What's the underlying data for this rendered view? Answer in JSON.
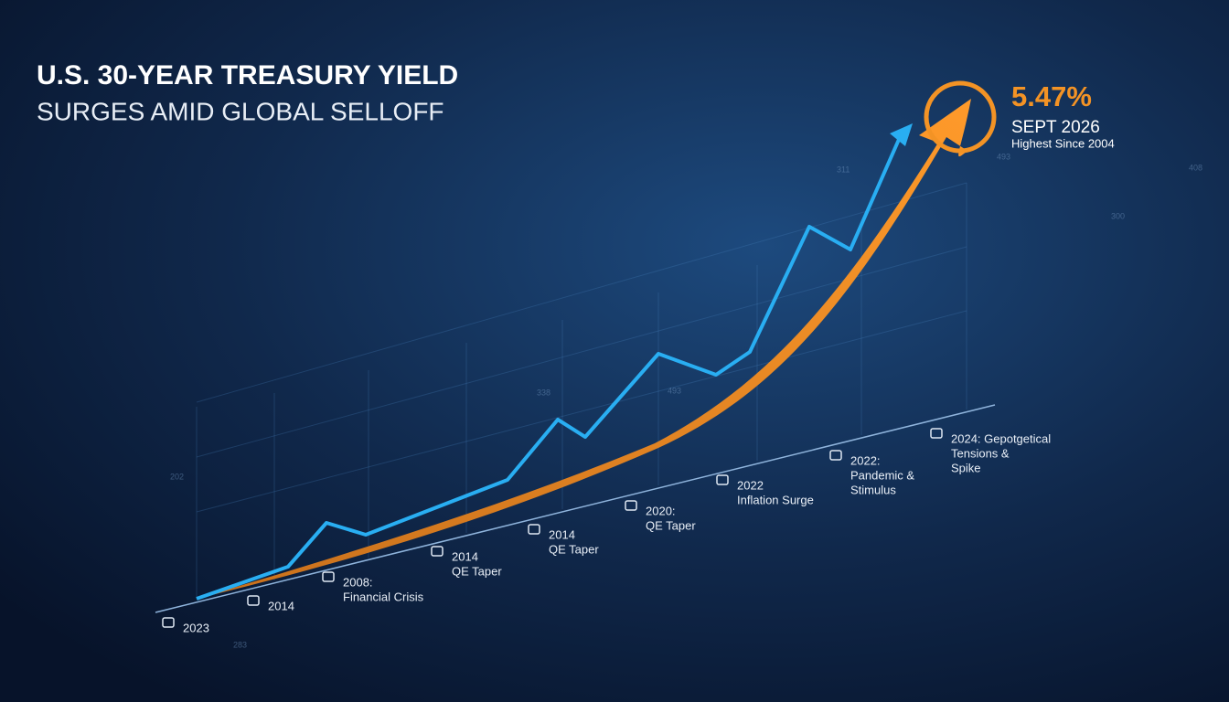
{
  "title": {
    "line1": "U.S. 30-YEAR TREASURY YIELD",
    "line2": "SURGES AMID GLOBAL SELLOFF"
  },
  "callout": {
    "value": "5.47%",
    "date": "SEPT 2026",
    "note": "Highest Since 2004"
  },
  "milestones": [
    {
      "lines": [
        "2023"
      ]
    },
    {
      "lines": [
        "2014"
      ]
    },
    {
      "lines": [
        "2008:",
        "Financial Crisis"
      ]
    },
    {
      "lines": [
        "2014",
        "QE Taper"
      ]
    },
    {
      "lines": [
        "2014",
        "QE Taper"
      ]
    },
    {
      "lines": [
        "2020:",
        "QE Taper"
      ]
    },
    {
      "lines": [
        "2022",
        "Inflation Surge"
      ]
    },
    {
      "lines": [
        "2022:",
        "Pandemic &",
        "Stimulus"
      ]
    },
    {
      "lines": [
        "2024: Gepotgetical",
        "Tensions &",
        "Spike"
      ]
    }
  ],
  "background_labels": [
    "311",
    "493",
    "408",
    "300",
    "338",
    "493",
    "202",
    "283"
  ]
}
